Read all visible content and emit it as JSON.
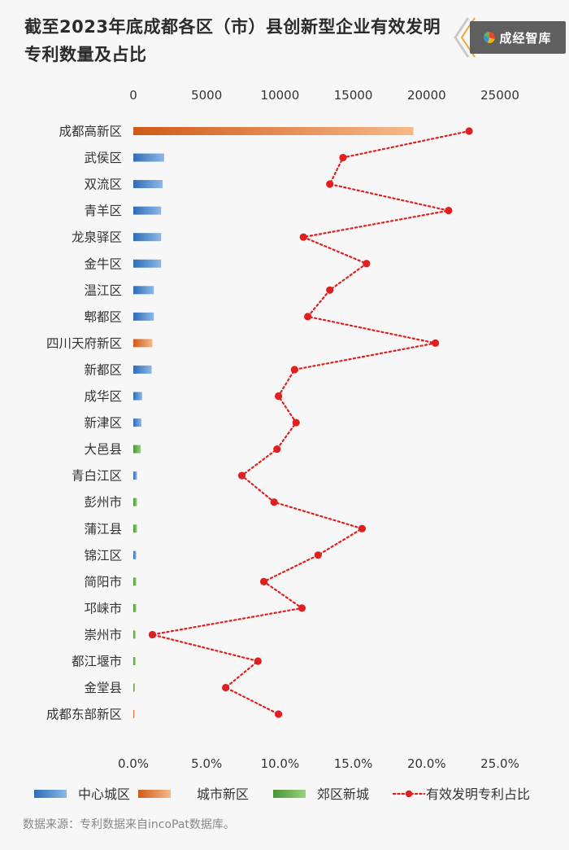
{
  "title": "截至2023年底成都各区（市）县创新型企业有效发明专利数量及占比",
  "logo": {
    "text": "成经智库"
  },
  "source": "数据来源：专利数据来自incoPat数据库。",
  "colors": {
    "center": "#3f7fc7",
    "city_new": "#e0782c",
    "suburb": "#5fa54a",
    "ratio": "#e02020"
  },
  "chart_data": {
    "type": "bar",
    "orientation": "horizontal",
    "categories": [
      "成都高新区",
      "武侯区",
      "双流区",
      "青羊区",
      "龙泉驿区",
      "金牛区",
      "温江区",
      "郫都区",
      "四川天府新区",
      "新都区",
      "成华区",
      "新津区",
      "大邑县",
      "青白江区",
      "彭州市",
      "蒲江县",
      "锦江区",
      "简阳市",
      "邛崃市",
      "崇州市",
      "都江堰市",
      "金堂县",
      "成都东部新区"
    ],
    "groups": [
      "city_new",
      "center",
      "center",
      "center",
      "center",
      "center",
      "center",
      "center",
      "city_new",
      "center",
      "center",
      "center",
      "suburb",
      "center",
      "suburb",
      "suburb",
      "center",
      "suburb",
      "suburb",
      "suburb",
      "suburb",
      "suburb",
      "city_new"
    ],
    "series": [
      {
        "name": "有效发明专利数量",
        "axis": "top",
        "values": [
          19100,
          2100,
          2000,
          1900,
          1900,
          1900,
          1400,
          1400,
          1300,
          1250,
          600,
          550,
          500,
          250,
          250,
          250,
          200,
          200,
          200,
          150,
          150,
          100,
          50
        ]
      },
      {
        "name": "有效发明专利占比",
        "axis": "bottom",
        "type": "line",
        "style": "dotted",
        "values": [
          22.9,
          14.3,
          13.4,
          21.5,
          11.6,
          15.9,
          13.4,
          11.9,
          20.6,
          11.0,
          9.9,
          11.1,
          9.8,
          7.4,
          9.6,
          15.6,
          12.6,
          8.9,
          11.5,
          1.3,
          8.5,
          6.3,
          9.9
        ]
      }
    ],
    "x_top": {
      "range": [
        0,
        25000
      ],
      "ticks": [
        "0",
        "5000",
        "10000",
        "15000",
        "20000",
        "25000"
      ]
    },
    "x_bottom": {
      "range": [
        0,
        25
      ],
      "ticks": [
        "0.0%",
        "5.0%",
        "10.0%",
        "15.0%",
        "20.0%",
        "25.0%"
      ]
    },
    "legend": {
      "position": "bottom",
      "items": [
        {
          "label": "中心城区",
          "group": "center"
        },
        {
          "label": "城市新区",
          "group": "city_new"
        },
        {
          "label": "郊区新城",
          "group": "suburb"
        },
        {
          "label": "有效发明专利占比",
          "group": "ratio"
        }
      ]
    }
  }
}
